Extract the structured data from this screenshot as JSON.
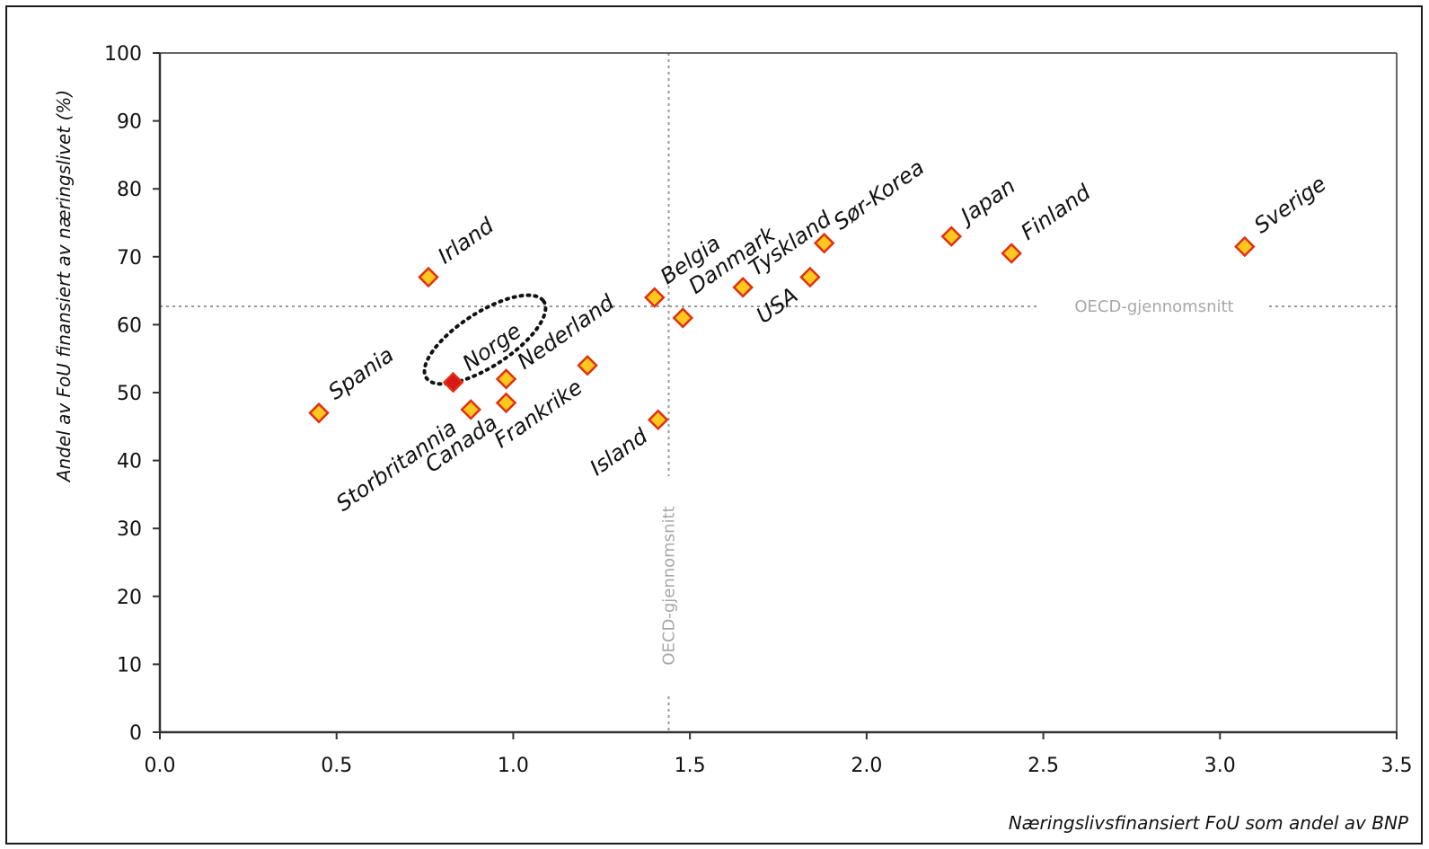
{
  "chart_data": {
    "type": "scatter",
    "xlabel": "Næringslivsfinansiert FoU som andel av BNP",
    "ylabel": "Andel av FoU finansiert av næringslivet (%)",
    "xlim": [
      0.0,
      3.5
    ],
    "ylim": [
      0,
      100
    ],
    "x_ticks": [
      "0.0",
      "0.5",
      "1.0",
      "1.5",
      "2.0",
      "2.5",
      "3.0",
      "3.5"
    ],
    "y_ticks": [
      "0",
      "10",
      "20",
      "30",
      "40",
      "50",
      "60",
      "70",
      "80",
      "90",
      "100"
    ],
    "grid": false,
    "points": [
      {
        "label": "Spania",
        "x": 0.45,
        "y": 47,
        "highlight": false
      },
      {
        "label": "Irland",
        "x": 0.76,
        "y": 67,
        "highlight": false
      },
      {
        "label": "Norge",
        "x": 0.83,
        "y": 51.5,
        "highlight": true
      },
      {
        "label": "Storbritannia",
        "x": 0.88,
        "y": 47.5,
        "highlight": false
      },
      {
        "label": "Canada",
        "x": 0.98,
        "y": 48.5,
        "highlight": false
      },
      {
        "label": "Nederland",
        "x": 0.98,
        "y": 52,
        "highlight": false
      },
      {
        "label": "Frankrike",
        "x": 1.21,
        "y": 54,
        "highlight": false
      },
      {
        "label": "Belgia",
        "x": 1.4,
        "y": 64,
        "highlight": false
      },
      {
        "label": "Island",
        "x": 1.41,
        "y": 46,
        "highlight": false
      },
      {
        "label": "Danmark",
        "x": 1.48,
        "y": 61,
        "highlight": false
      },
      {
        "label": "Tyskland",
        "x": 1.65,
        "y": 65.5,
        "highlight": false
      },
      {
        "label": "USA",
        "x": 1.84,
        "y": 67,
        "highlight": false
      },
      {
        "label": "Sør-Korea",
        "x": 1.88,
        "y": 72,
        "highlight": false
      },
      {
        "label": "Japan",
        "x": 2.24,
        "y": 73,
        "highlight": false
      },
      {
        "label": "Finland",
        "x": 2.41,
        "y": 70.5,
        "highlight": false
      },
      {
        "label": "Sverige",
        "x": 3.07,
        "y": 71.5,
        "highlight": false
      }
    ],
    "reference_lines": [
      {
        "label": "OECD-gjennomsnitt",
        "axis": "y",
        "value": 62.7
      },
      {
        "label": "OECD-gjennomsnitt",
        "axis": "x",
        "value": 1.44
      }
    ],
    "colors": {
      "marker_fill": "#ffc81e",
      "marker_stroke": "#e03010",
      "highlight_fill": "#d81818",
      "reference_line": "#999999",
      "reference_text": "#a8a8a8"
    }
  }
}
